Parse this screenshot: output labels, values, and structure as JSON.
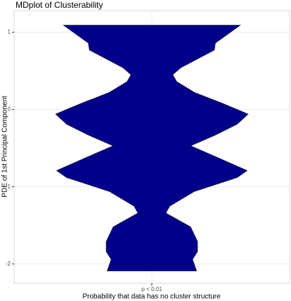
{
  "chart_data": {
    "type": "violin",
    "title": "MDplot of Clusterability",
    "ylabel": "PDE of 1st Principal Component",
    "xlabel": "Probability that data has no cluster structure",
    "categories": [
      "p < 0.01"
    ],
    "color": "#00008b",
    "y": [
      1.09,
      0.86,
      0.77,
      0.54,
      0.45,
      0.36,
      0.22,
      0.08,
      -0.06,
      -0.19,
      -0.33,
      -0.47,
      -0.61,
      -0.79,
      -0.88,
      -1.06,
      -1.25,
      -1.34,
      -1.52,
      -1.71,
      -1.84,
      -1.94,
      -2.09
    ],
    "density": [
      0.89,
      0.64,
      0.63,
      0.29,
      0.21,
      0.25,
      0.43,
      0.71,
      0.97,
      0.86,
      0.64,
      0.39,
      0.64,
      0.96,
      0.86,
      0.43,
      0.18,
      0.14,
      0.39,
      0.46,
      0.46,
      0.41,
      0.45
    ],
    "ylim": [
      -2.25,
      1.28
    ],
    "yticks": [
      -2,
      -1,
      0,
      1
    ],
    "grid": true
  }
}
